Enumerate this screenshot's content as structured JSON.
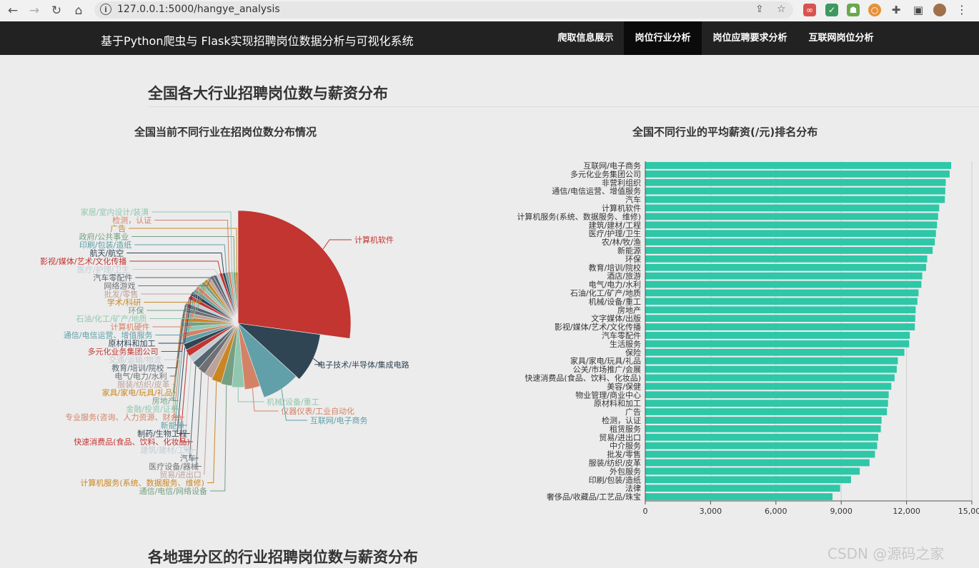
{
  "browser": {
    "url": "127.0.0.1:5000/hangye_analysis"
  },
  "header": {
    "brand": "基于Python爬虫与 Flask实现招聘岗位数据分析与可视化系统",
    "menu": [
      "爬取信息展示",
      "岗位行业分析",
      "岗位应聘要求分析",
      "互联网岗位分析"
    ],
    "active": 1
  },
  "page": {
    "section_title": "全国各大行业招聘岗位数与薪资分布",
    "next_section_title": "各地理分区的行业招聘岗位数与薪资分布",
    "watermark": "CSDN @源码之家"
  },
  "pie_chart": {
    "title": "全国当前不同行业在招岗位数分布情况",
    "slices": [
      {
        "name": "计算机软件",
        "value": 260,
        "color": "#c23531"
      },
      {
        "name": "电子技术/半导体/集成电路",
        "value": 92,
        "color": "#2f4554"
      },
      {
        "name": "互联网/电子商务",
        "value": 75,
        "color": "#61a0a8"
      },
      {
        "name": "仪器仪表/工业自动化",
        "value": 36,
        "color": "#d48265"
      },
      {
        "name": "机械/设备/重工",
        "value": 30,
        "color": "#91c7ae"
      },
      {
        "name": "通信/电信/网络设备",
        "value": 27,
        "color": "#749f83"
      },
      {
        "name": "计算机服务(系统、数据服务、维修)",
        "value": 25,
        "color": "#ca8622"
      },
      {
        "name": "贸易/进出口",
        "value": 22,
        "color": "#bda29a"
      },
      {
        "name": "医疗设备/器械",
        "value": 21,
        "color": "#6e7074"
      },
      {
        "name": "汽车",
        "value": 20,
        "color": "#546570"
      },
      {
        "name": "建筑/建材/工程",
        "value": 19,
        "color": "#c4ccd3"
      },
      {
        "name": "快速消费品(食品、饮料、化妆品)",
        "value": 18,
        "color": "#c23531"
      },
      {
        "name": "制药/生物工程",
        "value": 17,
        "color": "#2f4554"
      },
      {
        "name": "新能源",
        "value": 16,
        "color": "#61a0a8"
      },
      {
        "name": "专业服务(咨询、人力资源、财会)",
        "value": 15,
        "color": "#d48265"
      },
      {
        "name": "金融/投资/证券",
        "value": 15,
        "color": "#91c7ae"
      },
      {
        "name": "房地产",
        "value": 14,
        "color": "#749f83"
      },
      {
        "name": "家具/家电/玩具/礼品",
        "value": 14,
        "color": "#ca8622"
      },
      {
        "name": "服装/纺织/皮革",
        "value": 13,
        "color": "#bda29a"
      },
      {
        "name": "电气/电力/水利",
        "value": 13,
        "color": "#6e7074"
      },
      {
        "name": "教育/培训/院校",
        "value": 13,
        "color": "#546570"
      },
      {
        "name": "交通/运输/物流",
        "value": 12,
        "color": "#c4ccd3"
      },
      {
        "name": "多元化业务集团公司",
        "value": 12,
        "color": "#c23531"
      },
      {
        "name": "原材料和加工",
        "value": 12,
        "color": "#2f4554"
      },
      {
        "name": "通信/电信运营、增值服务",
        "value": 11,
        "color": "#61a0a8"
      },
      {
        "name": "计算机硬件",
        "value": 11,
        "color": "#d48265"
      },
      {
        "name": "石油/化工/矿产/地质",
        "value": 11,
        "color": "#91c7ae"
      },
      {
        "name": "环保",
        "value": 10,
        "color": "#749f83"
      },
      {
        "name": "学术/科研",
        "value": 10,
        "color": "#ca8622"
      },
      {
        "name": "批发/零售",
        "value": 10,
        "color": "#bda29a"
      },
      {
        "name": "网络游戏",
        "value": 10,
        "color": "#6e7074"
      },
      {
        "name": "汽车零配件",
        "value": 9,
        "color": "#546570"
      },
      {
        "name": "医疗/护理/卫生",
        "value": 9,
        "color": "#c4ccd3"
      },
      {
        "name": "影视/媒体/艺术/文化传播",
        "value": 9,
        "color": "#c23531"
      },
      {
        "name": "航天/航空",
        "value": 8,
        "color": "#2f4554"
      },
      {
        "name": "印刷/包装/造纸",
        "value": 8,
        "color": "#61a0a8"
      },
      {
        "name": "检测，认证",
        "value": 8,
        "color": "#d48265"
      },
      {
        "name": "家居/室内设计/装潢",
        "value": 8,
        "color": "#91c7ae"
      },
      {
        "name": "政府/公共事业",
        "value": 7,
        "color": "#749f83"
      },
      {
        "name": "广告",
        "value": 7,
        "color": "#ca8622"
      }
    ]
  },
  "bar_chart": {
    "title": "全国不同行业的平均薪资(/元)排名分布",
    "color": "#2ec7a7",
    "x_ticks": [
      "0",
      "3,000",
      "6,000",
      "9,000",
      "12,000",
      "15,000"
    ],
    "xmax": 15000,
    "categories": [
      "互联网/电子商务",
      "多元化业务集团公司",
      "非营利组织",
      "通信/电信运营、增值服务",
      "汽车",
      "计算机软件",
      "计算机服务(系统、数据服务、维修)",
      "建筑/建材/工程",
      "医疗/护理/卫生",
      "农/林/牧/渔",
      "新能源",
      "环保",
      "教育/培训/院校",
      "酒店/旅游",
      "电气/电力/水利",
      "石油/化工/矿产/地质",
      "机械/设备/重工",
      "房地产",
      "文字媒体/出版",
      "影视/媒体/艺术/文化传播",
      "汽车零配件",
      "生活服务",
      "保险",
      "家具/家电/玩具/礼品",
      "公关/市场推广/会展",
      "快速消费品(食品、饮料、化妆品)",
      "美容/保健",
      "物业管理/商业中心",
      "原材料和加工",
      "广告",
      "检测，认证",
      "租赁服务",
      "贸易/进出口",
      "中介服务",
      "批发/零售",
      "服装/纺织/皮革",
      "外包服务",
      "印刷/包装/造纸",
      "法律",
      "奢侈品/收藏品/工艺品/珠宝"
    ],
    "values": [
      14050,
      13980,
      13800,
      13780,
      13760,
      13500,
      13450,
      13400,
      13350,
      13300,
      13200,
      12950,
      12900,
      12720,
      12680,
      12550,
      12500,
      12420,
      12400,
      12380,
      12150,
      12120,
      11900,
      11600,
      11550,
      11450,
      11300,
      11180,
      11150,
      11100,
      10850,
      10820,
      10700,
      10650,
      10550,
      10300,
      9850,
      9450,
      8950,
      8600
    ]
  }
}
